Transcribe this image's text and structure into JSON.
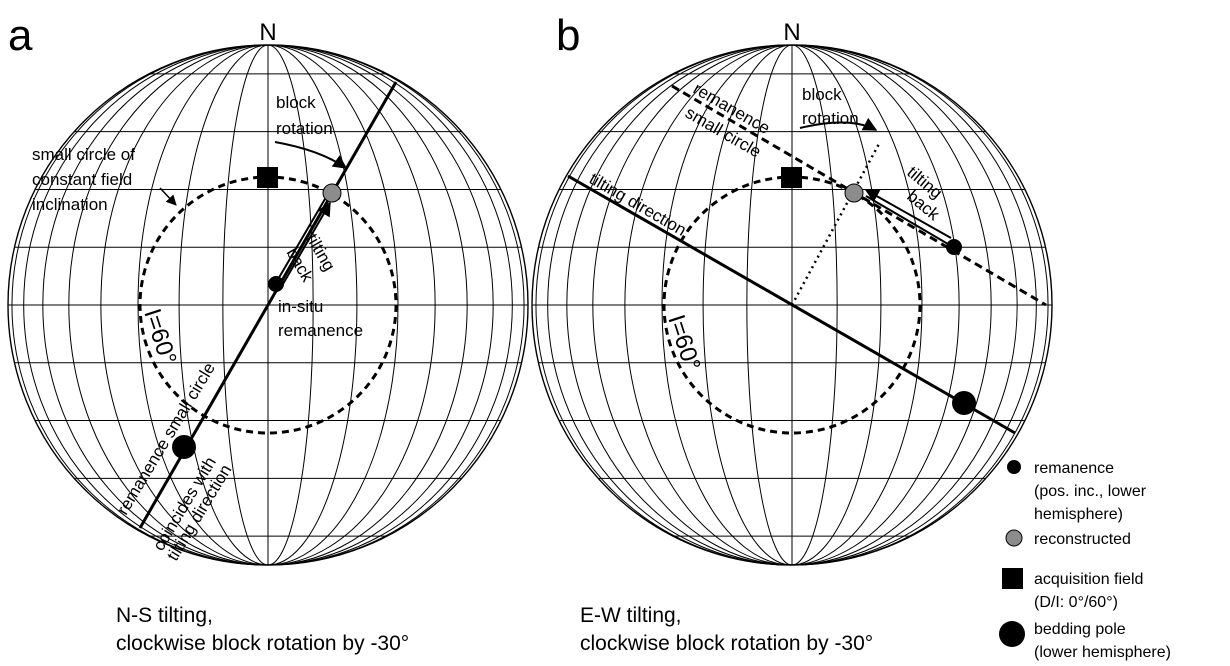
{
  "panel_a": {
    "letter": "a",
    "north": "N",
    "block_rotation_1": "block",
    "block_rotation_2": "rotation",
    "small_circle_1": "small circle of",
    "small_circle_2": "constant field",
    "small_circle_3": "inclination",
    "tilting_1": "tilting",
    "tilting_2": "back",
    "insitu_1": "in-situ",
    "insitu_2": "remanence",
    "inclination": "I=60°",
    "remanence_small_circle": "remanence small circle",
    "coincides_1": "coincides with",
    "coincides_2": "tilting direction",
    "caption_1": "N-S tilting,",
    "caption_2": "clockwise block rotation by -30°"
  },
  "panel_b": {
    "letter": "b",
    "north": "N",
    "block_rotation_1": "block",
    "block_rotation_2": "rotation",
    "remanence_small_circle_1": "remanence",
    "remanence_small_circle_2": "small circle",
    "tilting_direction": "tilting direction",
    "tilting_1": "tilting",
    "tilting_2": "back",
    "inclination": "I=60°",
    "caption_1": "E-W tilting,",
    "caption_2": "clockwise block rotation by -30°"
  },
  "legend": {
    "remanence_1": "remanence",
    "remanence_2": "(pos. inc., lower",
    "remanence_3": "hemisphere)",
    "reconstructed": "reconstructed",
    "acquisition_1": "acquisition field",
    "acquisition_2": "(D/I: 0°/60°)",
    "bedding_1": "bedding pole",
    "bedding_2": "(lower hemisphere)"
  },
  "colors": {
    "reconstructed": "#8c8c8c",
    "ink": "#000000"
  }
}
